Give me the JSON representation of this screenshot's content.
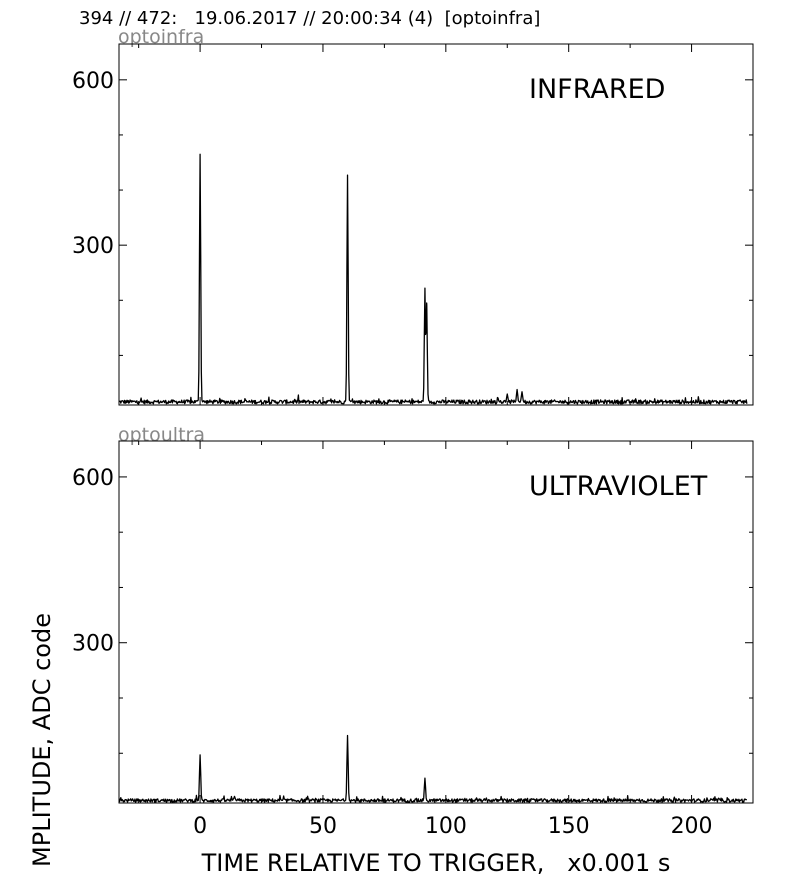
{
  "header": {
    "text": "394 // 472:   19.06.2017 // 20:00:34 (4)  [optoinfra]"
  },
  "xlabel": "TIME RELATIVE TO TRIGGER,   x0.001 s",
  "ylabel": "MPLITUDE,  ADC code",
  "chart_data": [
    {
      "type": "line",
      "source_label": "optoinfra",
      "title": "INFRARED",
      "xlim": [
        -33,
        225
      ],
      "ylim": [
        10,
        665
      ],
      "xticks": [
        0,
        50,
        100,
        150,
        200
      ],
      "yticks": [
        300,
        600
      ],
      "show_xtick_labels": false,
      "baseline": 15,
      "noise_amp": 7,
      "peaks": [
        {
          "x": 0,
          "y": 465
        },
        {
          "x": 60,
          "y": 427
        },
        {
          "x": 91.5,
          "y": 222
        },
        {
          "x": 92.2,
          "y": 195
        },
        {
          "x": 129,
          "y": 38
        },
        {
          "x": 131,
          "y": 34
        },
        {
          "x": 125,
          "y": 30
        }
      ]
    },
    {
      "type": "line",
      "source_label": "optoultra",
      "title": "ULTRAVIOLET",
      "xlim": [
        -33,
        225
      ],
      "ylim": [
        10,
        665
      ],
      "xticks": [
        0,
        50,
        100,
        150,
        200
      ],
      "yticks": [
        300,
        600
      ],
      "show_xtick_labels": true,
      "baseline": 14,
      "noise_amp": 6,
      "peaks": [
        {
          "x": 0,
          "y": 97
        },
        {
          "x": 60,
          "y": 132
        },
        {
          "x": 91.5,
          "y": 55
        },
        {
          "x": 14,
          "y": 22
        }
      ]
    }
  ]
}
